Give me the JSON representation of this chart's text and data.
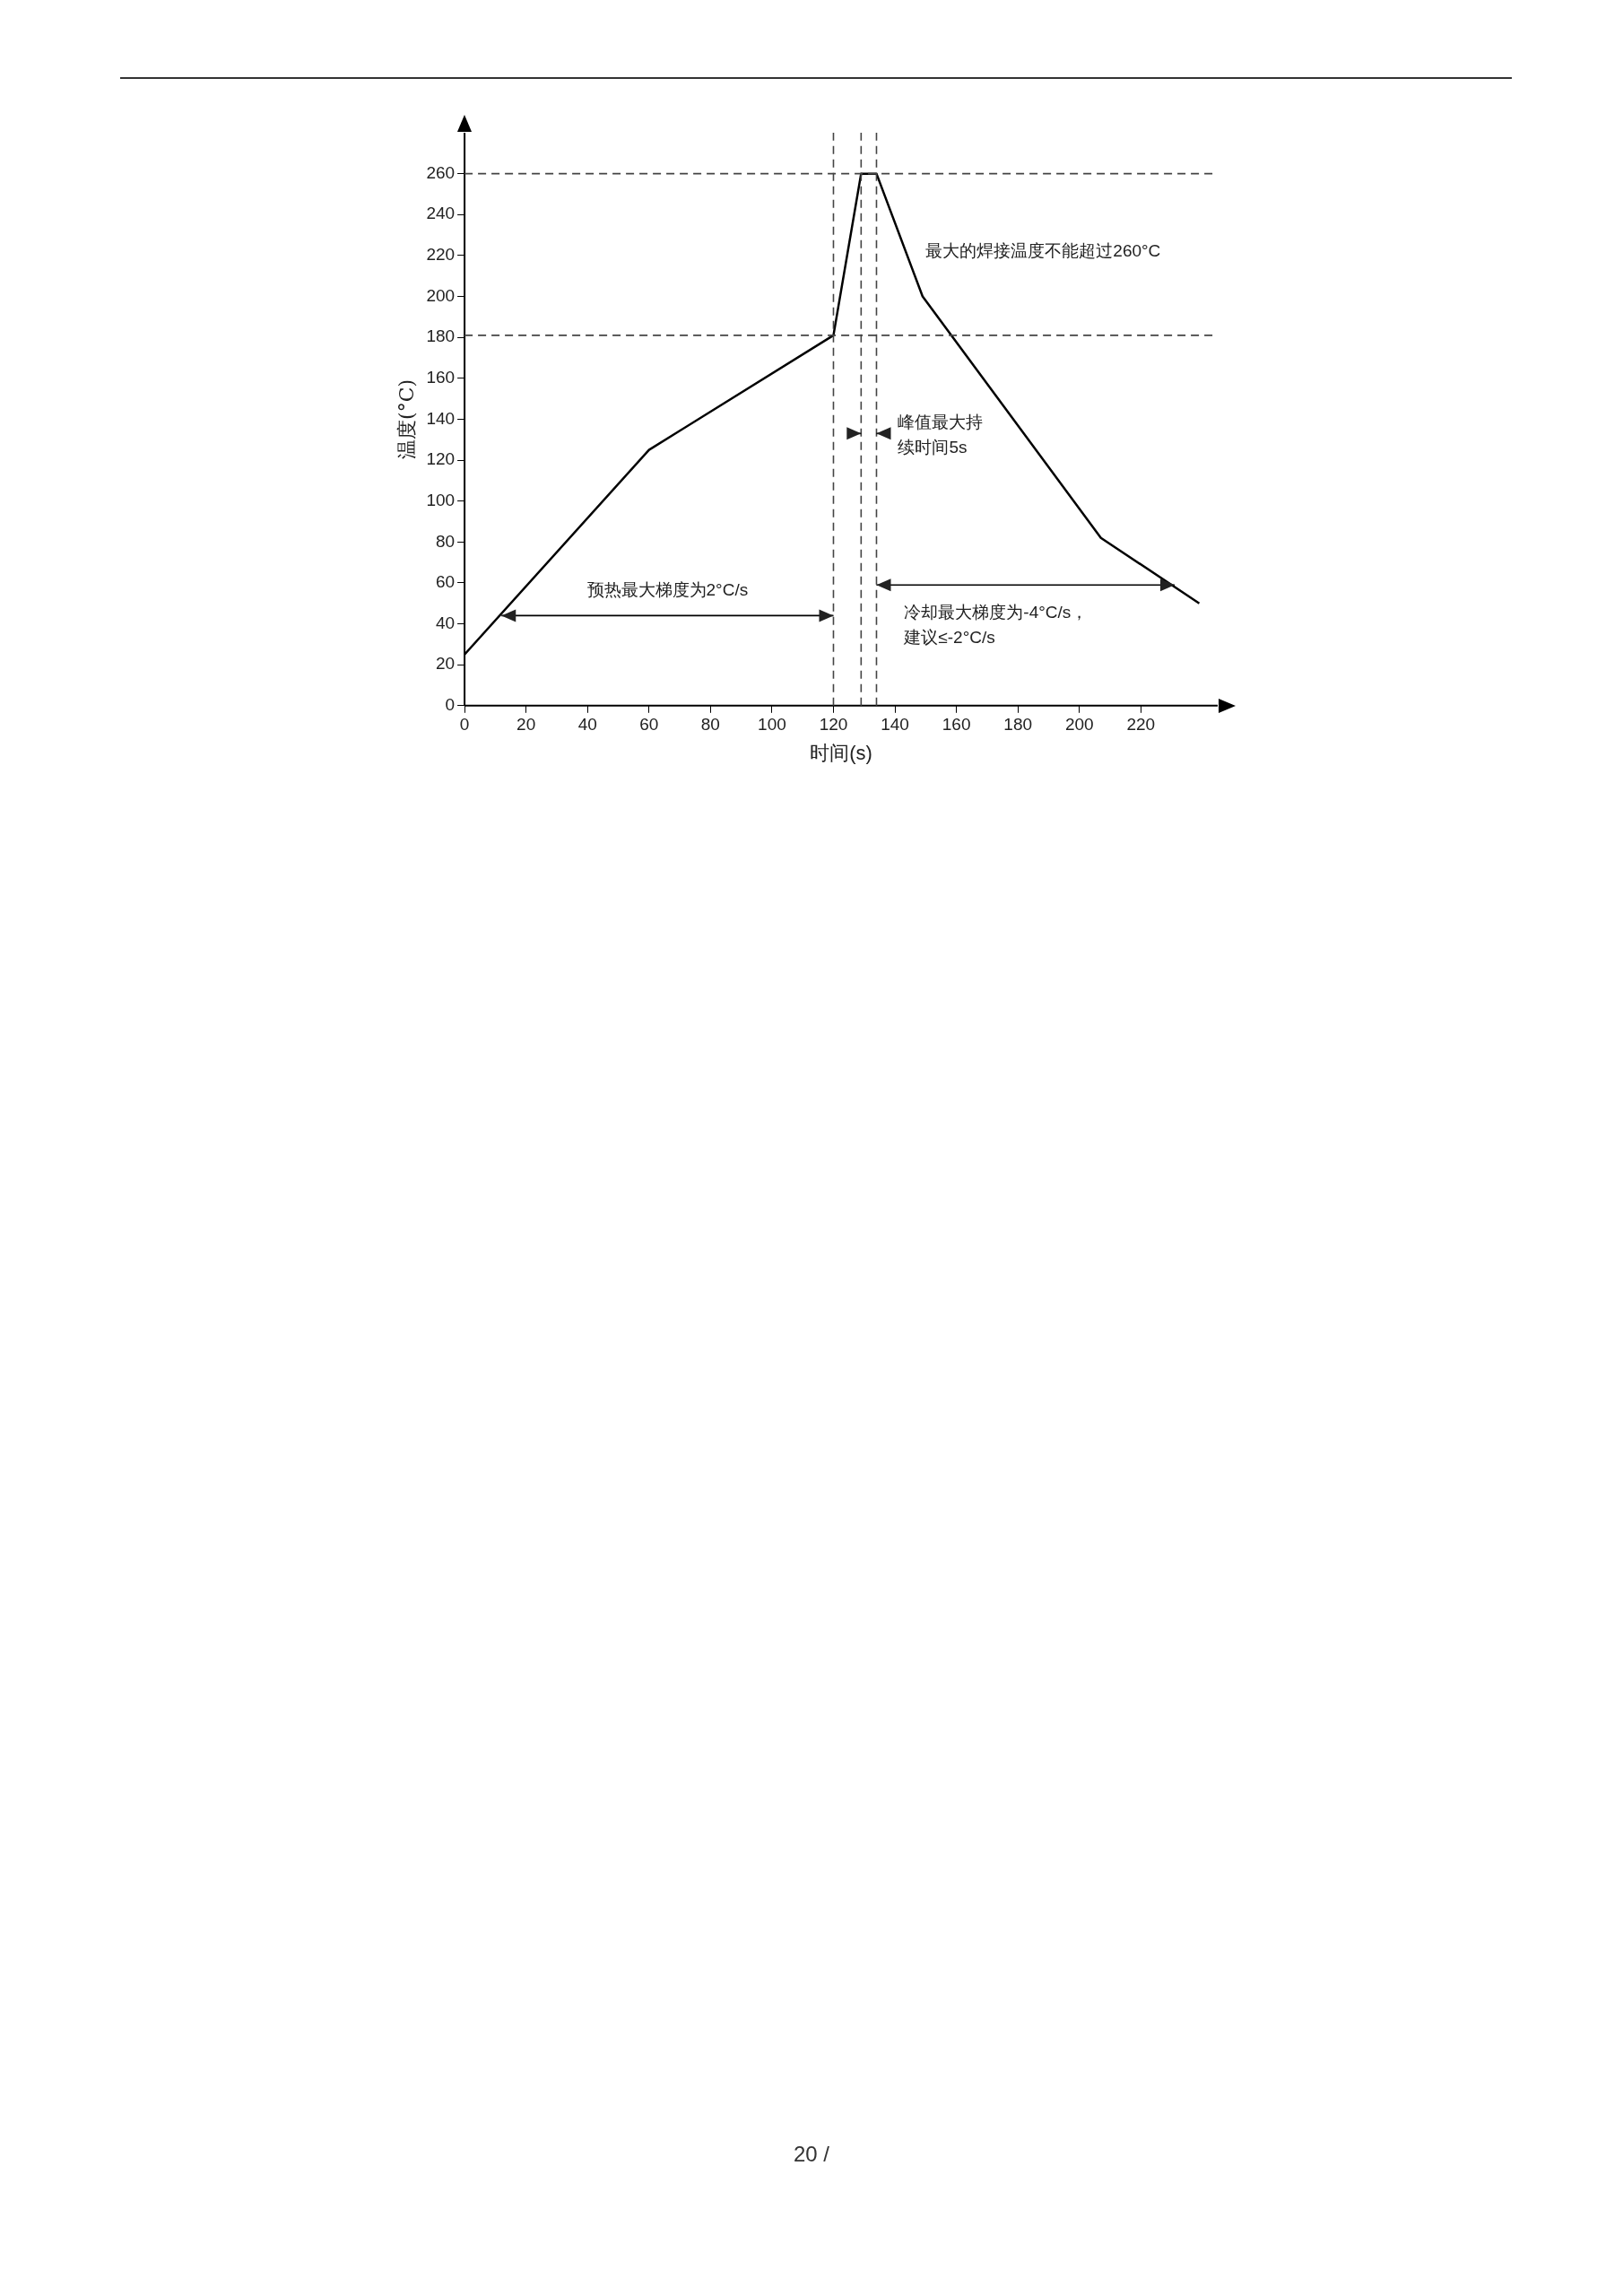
{
  "chart_data": {
    "type": "line",
    "xlabel": "时间(s)",
    "ylabel": "温度(°C)",
    "x": [
      0,
      60,
      120,
      129,
      134,
      149,
      207,
      239
    ],
    "series": [
      {
        "color": "#000000",
        "values": [
          25,
          125,
          181,
          260,
          260,
          200,
          82,
          50
        ]
      }
    ],
    "xlim": [
      0,
      245
    ],
    "xticks": [
      0,
      20,
      40,
      60,
      80,
      100,
      120,
      140,
      160,
      180,
      200,
      220
    ],
    "ylim": [
      0,
      280
    ],
    "yticks": [
      0,
      20,
      40,
      60,
      80,
      100,
      120,
      140,
      160,
      180,
      200,
      220,
      240,
      260
    ],
    "grid": false,
    "legend": false,
    "marker": "none",
    "line_style": "solid",
    "ref_lines": [
      {
        "axis": "y",
        "value": 260,
        "line_style": "dashed"
      },
      {
        "axis": "y",
        "value": 181,
        "line_style": "dashed"
      },
      {
        "axis": "x",
        "value": 120,
        "line_style": "dashed"
      },
      {
        "axis": "x",
        "value": 129,
        "line_style": "dashed"
      },
      {
        "axis": "x",
        "value": 134,
        "line_style": "dashed"
      }
    ],
    "annotations": [
      "最大的焊接温度不能超过260°C",
      "峰值最大持续时间5s",
      "预热最大梯度为2°C/s",
      "冷却最大梯度为-4°C/s，建议≤-2°C/s",
      "20 /"
    ]
  }
}
